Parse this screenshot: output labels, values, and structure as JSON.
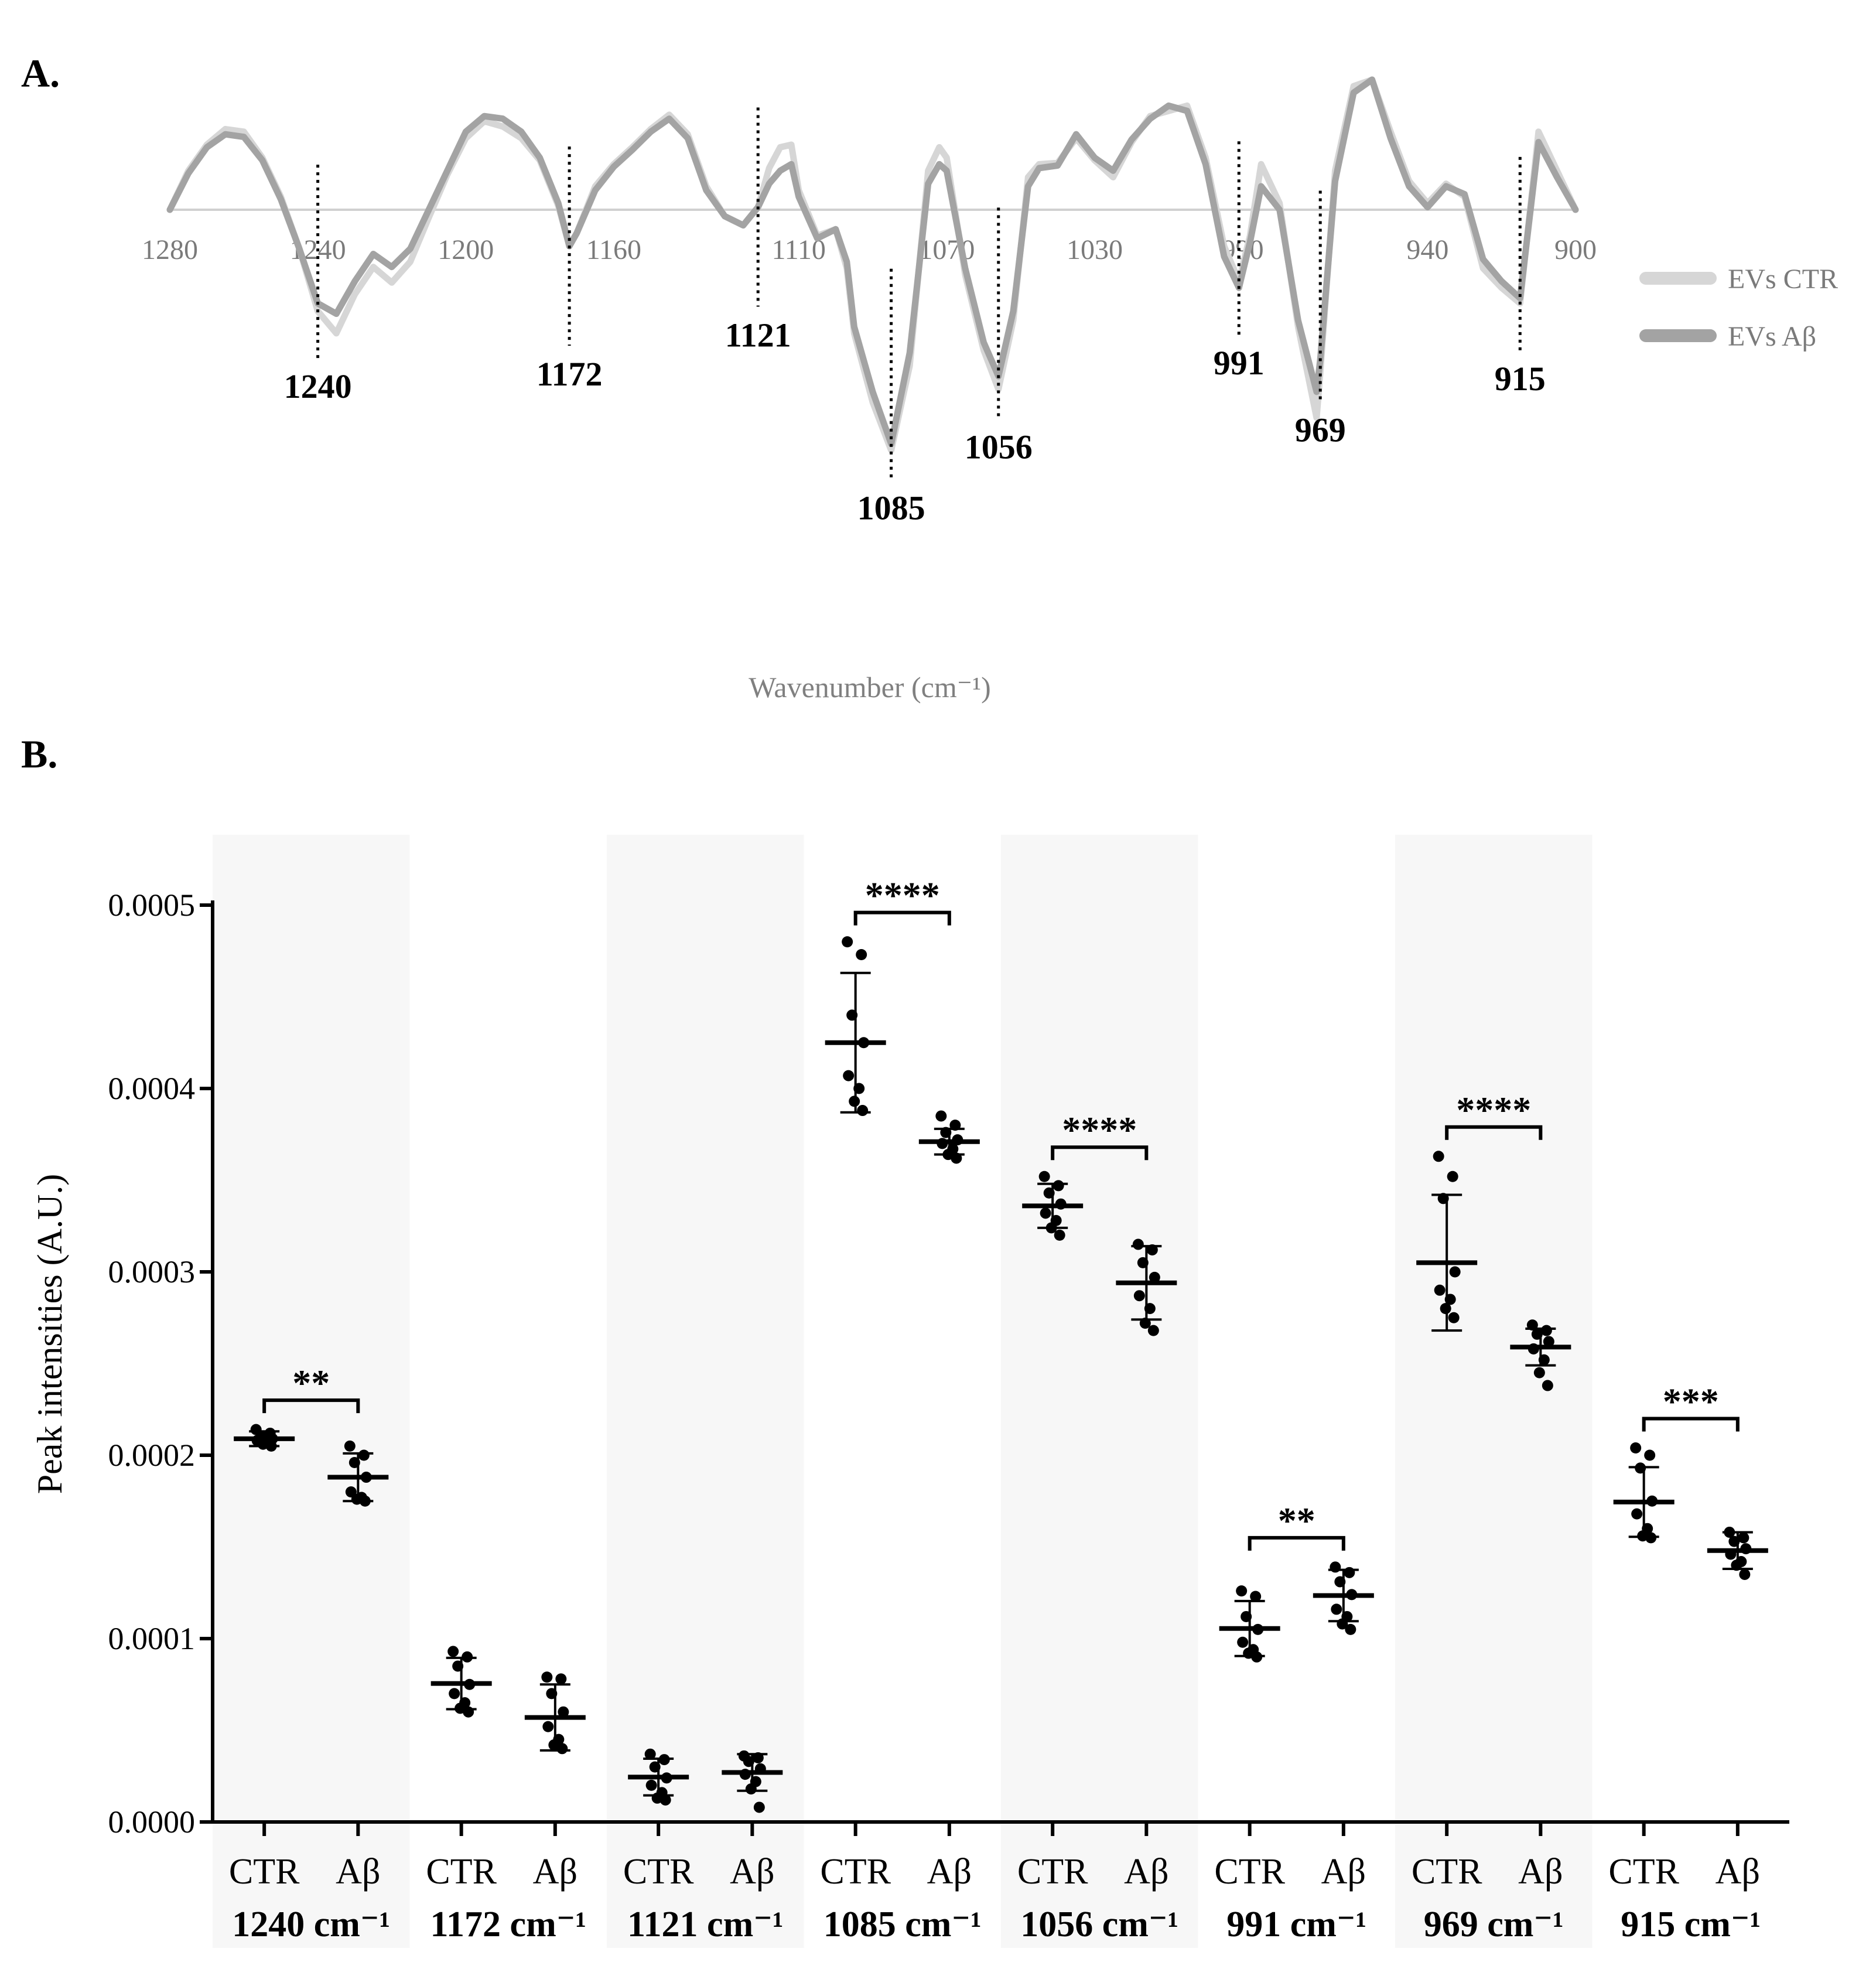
{
  "panel_a": {
    "label": "A.",
    "xlabel": "Wavenumber (cm⁻¹)",
    "legend": [
      {
        "name": "EVs CTR",
        "color": "#d6d6d6"
      },
      {
        "name": "EVs Aβ",
        "color": "#a3a3a3"
      }
    ],
    "ticks": [
      "1280",
      "1240",
      "1200",
      "1160",
      "1110",
      "1070",
      "1030",
      "990",
      "940",
      "900"
    ],
    "peaks": [
      "1240",
      "1172",
      "1121",
      "1085",
      "1056",
      "991",
      "969",
      "915"
    ]
  },
  "panel_b": {
    "label": "B.",
    "ylabel": "Peak intensities (A.U.)",
    "yticks": [
      "0.0000",
      "0.0001",
      "0.0002",
      "0.0003",
      "0.0004",
      "0.0005"
    ],
    "group_labels": [
      "CTR",
      "Aβ"
    ],
    "bands": [
      "1240 cm⁻¹",
      "1172 cm⁻¹",
      "1121 cm⁻¹",
      "1085 cm⁻¹",
      "1056 cm⁻¹",
      "991 cm⁻¹",
      "969 cm⁻¹",
      "915 cm⁻¹"
    ],
    "significance": [
      "**",
      "",
      "",
      "****",
      "****",
      "**",
      "****",
      "***"
    ]
  },
  "chart_data": [
    {
      "type": "line",
      "title": "A.",
      "xlabel": "Wavenumber (cm⁻¹)",
      "ylabel": "",
      "x": [
        1280,
        1275,
        1270,
        1265,
        1260,
        1255,
        1250,
        1245,
        1240,
        1235,
        1230,
        1225,
        1220,
        1215,
        1210,
        1205,
        1200,
        1195,
        1190,
        1185,
        1180,
        1175,
        1172,
        1170,
        1165,
        1160,
        1155,
        1150,
        1145,
        1140,
        1135,
        1130,
        1125,
        1121,
        1118,
        1115,
        1112,
        1110,
        1105,
        1100,
        1097,
        1095,
        1090,
        1085,
        1080,
        1075,
        1072,
        1070,
        1065,
        1060,
        1056,
        1052,
        1048,
        1045,
        1040,
        1035,
        1030,
        1025,
        1020,
        1015,
        1010,
        1005,
        1000,
        995,
        991,
        988,
        985,
        980,
        975,
        970,
        969,
        965,
        960,
        955,
        950,
        945,
        940,
        935,
        930,
        925,
        920,
        915,
        910,
        905,
        900
      ],
      "series": [
        {
          "name": "EVs CTR",
          "values": [
            0.0,
            0.3,
            0.5,
            0.62,
            0.6,
            0.4,
            0.1,
            -0.3,
            -0.78,
            -0.95,
            -0.65,
            -0.44,
            -0.56,
            -0.4,
            -0.06,
            0.27,
            0.55,
            0.68,
            0.64,
            0.55,
            0.38,
            0.03,
            -0.28,
            -0.18,
            0.18,
            0.35,
            0.48,
            0.62,
            0.73,
            0.58,
            0.18,
            -0.05,
            -0.12,
            0.02,
            0.32,
            0.48,
            0.5,
            0.15,
            -0.2,
            -0.15,
            -0.45,
            -0.95,
            -1.48,
            -1.85,
            -1.2,
            0.3,
            0.48,
            0.4,
            -0.5,
            -1.08,
            -1.38,
            -0.85,
            0.25,
            0.35,
            0.36,
            0.55,
            0.38,
            0.25,
            0.52,
            0.72,
            0.76,
            0.8,
            0.4,
            -0.28,
            -0.55,
            -0.2,
            0.35,
            0.05,
            -0.9,
            -1.6,
            -1.25,
            0.3,
            0.95,
            1.0,
            0.6,
            0.22,
            0.05,
            0.2,
            0.1,
            -0.45,
            -0.6,
            -0.72,
            0.6,
            0.3,
            0.0
          ]
        },
        {
          "name": "EVs Aβ",
          "values": [
            0.0,
            0.28,
            0.48,
            0.58,
            0.56,
            0.38,
            0.08,
            -0.3,
            -0.72,
            -0.8,
            -0.55,
            -0.34,
            -0.44,
            -0.3,
            0.0,
            0.3,
            0.6,
            0.72,
            0.7,
            0.6,
            0.4,
            0.05,
            -0.28,
            -0.18,
            0.15,
            0.33,
            0.46,
            0.6,
            0.7,
            0.55,
            0.15,
            -0.05,
            -0.12,
            0.02,
            0.2,
            0.3,
            0.35,
            0.1,
            -0.22,
            -0.15,
            -0.4,
            -0.9,
            -1.4,
            -1.8,
            -1.1,
            0.2,
            0.35,
            0.3,
            -0.45,
            -1.02,
            -1.28,
            -0.78,
            0.18,
            0.32,
            0.34,
            0.58,
            0.4,
            0.3,
            0.54,
            0.7,
            0.8,
            0.76,
            0.35,
            -0.36,
            -0.6,
            -0.25,
            0.18,
            0.0,
            -0.85,
            -1.4,
            -1.15,
            0.22,
            0.9,
            1.0,
            0.55,
            0.18,
            0.02,
            0.18,
            0.12,
            -0.38,
            -0.55,
            -0.68,
            0.52,
            0.25,
            0.0
          ]
        }
      ],
      "annotated_peaks": [
        1240,
        1172,
        1121,
        1085,
        1056,
        991,
        969,
        915
      ],
      "xlim": [
        1280,
        900
      ],
      "grid": false,
      "legend": "right"
    },
    {
      "type": "scatter",
      "title": "B.",
      "xlabel": "",
      "ylabel": "Peak intensities (A.U.)",
      "ylim": [
        0,
        0.0005
      ],
      "categories": [
        "1240 cm⁻¹",
        "1172 cm⁻¹",
        "1121 cm⁻¹",
        "1085 cm⁻¹",
        "1056 cm⁻¹",
        "991 cm⁻¹",
        "969 cm⁻¹",
        "915 cm⁻¹"
      ],
      "groups": [
        {
          "band": "1240 cm⁻¹",
          "significance": "**",
          "CTR": {
            "mean": 0.000209,
            "sd": 4e-06,
            "points": [
              0.000214,
              0.000212,
              0.00021,
              0.000209,
              0.000208,
              0.000207,
              0.000206,
              0.000205
            ]
          },
          "Ab": {
            "mean": 0.000188,
            "sd": 1.3e-05,
            "points": [
              0.000205,
              0.0002,
              0.000196,
              0.000188,
              0.00018,
              0.000177,
              0.000176,
              0.000175
            ]
          }
        },
        {
          "band": "1172 cm⁻¹",
          "significance": "",
          "CTR": {
            "mean": 7.55e-05,
            "sd": 1.4e-05,
            "points": [
              9.3e-05,
              9e-05,
              8.5e-05,
              7.5e-05,
              7e-05,
              6.5e-05,
              6.2e-05,
              6e-05
            ]
          },
          "Ab": {
            "mean": 5.7e-05,
            "sd": 1.8e-05,
            "points": [
              7.9e-05,
              7.8e-05,
              7e-05,
              6e-05,
              5.2e-05,
              4.5e-05,
              4.2e-05,
              4e-05
            ]
          }
        },
        {
          "band": "1121 cm⁻¹",
          "significance": "",
          "CTR": {
            "mean": 2.45e-05,
            "sd": 1e-05,
            "points": [
              3.7e-05,
              3.4e-05,
              3e-05,
              2.4e-05,
              2e-05,
              1.6e-05,
              1.3e-05,
              1.2e-05
            ]
          },
          "Ab": {
            "mean": 2.7e-05,
            "sd": 1e-05,
            "points": [
              3.6e-05,
              3.5e-05,
              3.3e-05,
              2.9e-05,
              2.6e-05,
              2.2e-05,
              1.8e-05,
              8e-06
            ]
          }
        },
        {
          "band": "1085 cm⁻¹",
          "significance": "****",
          "CTR": {
            "mean": 0.000425,
            "sd": 3.8e-05,
            "points": [
              0.00048,
              0.000473,
              0.00044,
              0.000425,
              0.000407,
              0.0004,
              0.000393,
              0.000388
            ]
          },
          "Ab": {
            "mean": 0.000371,
            "sd": 7e-06,
            "points": [
              0.000385,
              0.00038,
              0.000376,
              0.000372,
              0.00037,
              0.000367,
              0.000364,
              0.000362
            ]
          }
        },
        {
          "band": "1056 cm⁻¹",
          "significance": "****",
          "CTR": {
            "mean": 0.000336,
            "sd": 1.2e-05,
            "points": [
              0.000352,
              0.000347,
              0.000343,
              0.000337,
              0.000332,
              0.000328,
              0.000324,
              0.00032
            ]
          },
          "Ab": {
            "mean": 0.000294,
            "sd": 2e-05,
            "points": [
              0.000315,
              0.000312,
              0.000305,
              0.000297,
              0.000287,
              0.00028,
              0.000272,
              0.000268
            ]
          }
        },
        {
          "band": "991 cm⁻¹",
          "significance": "**",
          "CTR": {
            "mean": 0.0001055,
            "sd": 1.5e-05,
            "points": [
              0.000126,
              0.000123,
              0.000112,
              0.000105,
              9.8e-05,
              9.4e-05,
              9.2e-05,
              9e-05
            ]
          },
          "Ab": {
            "mean": 0.0001235,
            "sd": 1.4e-05,
            "points": [
              0.000139,
              0.000136,
              0.000131,
              0.000124,
              0.000116,
              0.000112,
              0.000108,
              0.000105
            ]
          }
        },
        {
          "band": "969 cm⁻¹",
          "significance": "****",
          "CTR": {
            "mean": 0.000305,
            "sd": 3.7e-05,
            "points": [
              0.000363,
              0.000352,
              0.00034,
              0.0003,
              0.00029,
              0.000285,
              0.00028,
              0.000275
            ]
          },
          "Ab": {
            "mean": 0.000259,
            "sd": 1e-05,
            "points": [
              0.000271,
              0.000268,
              0.000266,
              0.000262,
              0.000258,
              0.000252,
              0.000245,
              0.000238
            ]
          }
        },
        {
          "band": "915 cm⁻¹",
          "significance": "***",
          "CTR": {
            "mean": 0.0001745,
            "sd": 1.9e-05,
            "points": [
              0.000204,
              0.0002,
              0.000193,
              0.000175,
              0.000168,
              0.00016,
              0.000156,
              0.000155
            ]
          },
          "Ab": {
            "mean": 0.000148,
            "sd": 1e-05,
            "points": [
              0.000158,
              0.000155,
              0.000153,
              0.000149,
              0.000146,
              0.000142,
              0.00014,
              0.000135
            ]
          }
        }
      ],
      "legend": "none"
    }
  ]
}
